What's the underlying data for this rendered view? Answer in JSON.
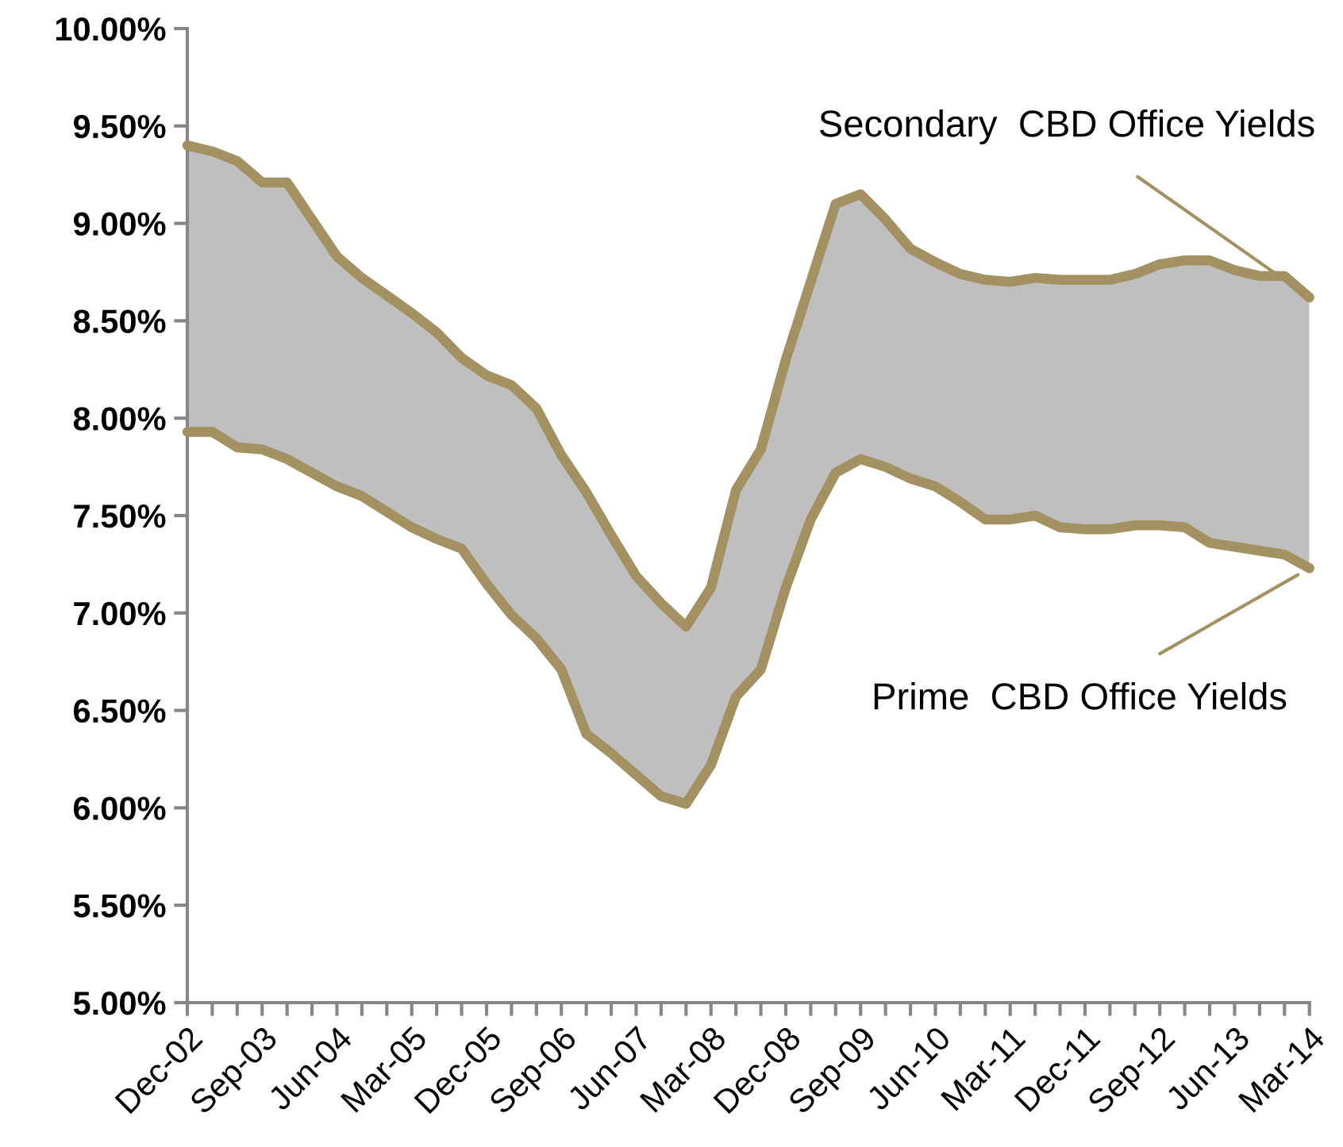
{
  "chart_data": {
    "type": "line",
    "categories": [
      "Dec-02",
      null,
      null,
      "Sep-03",
      null,
      null,
      "Jun-04",
      null,
      null,
      "Mar-05",
      null,
      null,
      "Dec-05",
      null,
      null,
      "Sep-06",
      null,
      null,
      "Jun-07",
      null,
      null,
      "Mar-08",
      null,
      null,
      "Dec-08",
      null,
      null,
      "Sep-09",
      null,
      null,
      "Jun-10",
      null,
      null,
      "Mar-11",
      null,
      null,
      "Dec-11",
      null,
      null,
      "Sep-12",
      null,
      null,
      "Jun-13",
      null,
      null,
      "Mar-14"
    ],
    "series": [
      {
        "color": "#a39161",
        "values": [
          9.4,
          9.37,
          9.32,
          9.21,
          9.21,
          9.02,
          8.83,
          8.72,
          8.63,
          8.54,
          8.44,
          8.31,
          8.22,
          8.17,
          8.05,
          7.81,
          7.62,
          7.4,
          7.19,
          7.05,
          6.93,
          7.13,
          7.63,
          7.84,
          8.3,
          8.7,
          9.1,
          9.15,
          9.02,
          8.87,
          8.8,
          8.74,
          8.71,
          8.7,
          8.72,
          8.71,
          8.71,
          8.71,
          8.74,
          8.79,
          8.81,
          8.81,
          8.76,
          8.73,
          8.73,
          8.62
        ],
        "lower": [
          7.93,
          7.93,
          7.85,
          7.84,
          7.79,
          7.72,
          7.65,
          7.6,
          7.52,
          7.44,
          7.38,
          7.33,
          7.15,
          6.99,
          6.87,
          6.71,
          6.38,
          6.28,
          6.17,
          6.06,
          6.02,
          6.22,
          6.57,
          6.71,
          7.13,
          7.48,
          7.72,
          7.79,
          7.75,
          7.69,
          7.65,
          7.57,
          7.48,
          7.48,
          7.5,
          7.44,
          7.43,
          7.43,
          7.45,
          7.45,
          7.44,
          7.36,
          7.34,
          7.32,
          7.3,
          7.23
        ],
        "upper": [
          9.4,
          9.37,
          9.32,
          9.21,
          9.21,
          9.02,
          8.83,
          8.72,
          8.63,
          8.54,
          8.44,
          8.31,
          8.22,
          8.17,
          8.05,
          7.81,
          7.62,
          7.4,
          7.19,
          7.05,
          6.93,
          7.13,
          7.63,
          7.84,
          8.3,
          8.7,
          9.1,
          9.15,
          9.02,
          8.87,
          8.8,
          8.74,
          8.71,
          8.7,
          8.72,
          8.71,
          8.71,
          8.71,
          8.74,
          8.79,
          8.81,
          8.81,
          8.76,
          8.73,
          8.73,
          8.62
        ]
      },
      {
        "color": "#a39161",
        "values": [
          7.93,
          7.93,
          7.85,
          7.84,
          7.79,
          7.72,
          7.65,
          7.6,
          7.52,
          7.44,
          7.38,
          7.33,
          7.15,
          6.99,
          6.87,
          6.71,
          6.38,
          6.28,
          6.17,
          6.06,
          6.02,
          6.22,
          6.57,
          6.71,
          7.13,
          7.48,
          7.72,
          7.79,
          7.75,
          7.69,
          7.65,
          7.57,
          7.48,
          7.48,
          7.5,
          7.44,
          7.43,
          7.43,
          7.45,
          7.45,
          7.44,
          7.36,
          7.34,
          7.32,
          7.3,
          7.23
        ]
      }
    ],
    "annotations": [
      {
        "text": "Secondary  CBD Office Yields",
        "x": "Mar-14",
        "y": 8.62
      },
      {
        "text": "Prime  CBD Office Yields",
        "x": "Mar-14",
        "y": 7.23
      }
    ],
    "ylim": [
      5,
      10
    ],
    "yticks": [
      {
        "value": 5,
        "label": "5.00%"
      },
      {
        "value": 5.5,
        "label": "5.50%"
      },
      {
        "value": 6,
        "label": "6.00%"
      },
      {
        "value": 6.5,
        "label": "6.50%"
      },
      {
        "value": 7,
        "label": "7.00%"
      },
      {
        "value": 7.5,
        "label": "7.50%"
      },
      {
        "value": 8,
        "label": "8.00%"
      },
      {
        "value": 8.5,
        "label": "8.50%"
      },
      {
        "value": 9,
        "label": "9.00%"
      },
      {
        "value": 9.5,
        "label": "9.50%"
      },
      {
        "value": 10,
        "label": "10.00%"
      }
    ],
    "grid": false,
    "marker": "none",
    "line_style": "solid"
  }
}
